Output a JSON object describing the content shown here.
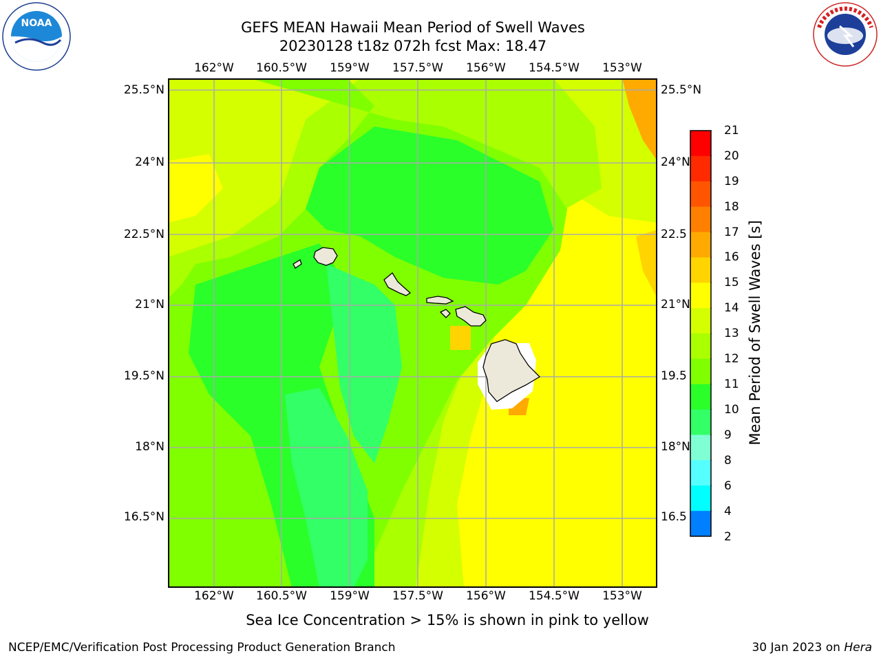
{
  "title_line1": "GEFS MEAN Hawaii Mean Period of Swell Waves",
  "title_line2": "20230128 t18z 072h fcst   Max: 18.47",
  "logos": {
    "left": "NOAA",
    "right": "NATIONAL WEATHER SERVICE"
  },
  "longitude_labels": [
    "162°W",
    "160.5°W",
    "159°W",
    "157.5°W",
    "156°W",
    "154.5°W",
    "153°W"
  ],
  "latitude_labels_left": [
    "25.5°N",
    "24°N",
    "22.5°N",
    "21°N",
    "19.5°N",
    "18°N",
    "16.5°N"
  ],
  "latitude_labels_right": [
    "25.5°N",
    "24°N",
    "22.5",
    "21°N",
    "19.5",
    "18°N",
    "16.5"
  ],
  "colorbar": {
    "title": "Mean Period of Swell Waves [s]",
    "ticks": [
      "21",
      "20",
      "19",
      "18",
      "17",
      "16",
      "15",
      "14",
      "13",
      "12",
      "11",
      "10",
      "9",
      "8",
      "6",
      "4",
      "2"
    ],
    "colors": [
      "#ff0000",
      "#ff2a00",
      "#ff5500",
      "#ff8000",
      "#ffaa00",
      "#ffd400",
      "#ffff00",
      "#d4ff00",
      "#aaff00",
      "#80ff00",
      "#2aff2a",
      "#33ff66",
      "#80ffd4",
      "#55ffff",
      "#00ffff",
      "#0080ff",
      "#0000ff"
    ]
  },
  "caption": "Sea Ice Concentration > 15% is shown in pink to yellow",
  "footer_left": "NCEP/EMC/Verification Post Processing Product Generation Branch",
  "footer_right_prefix": "30 Jan 2023 on ",
  "footer_right_machine": "Hera"
}
